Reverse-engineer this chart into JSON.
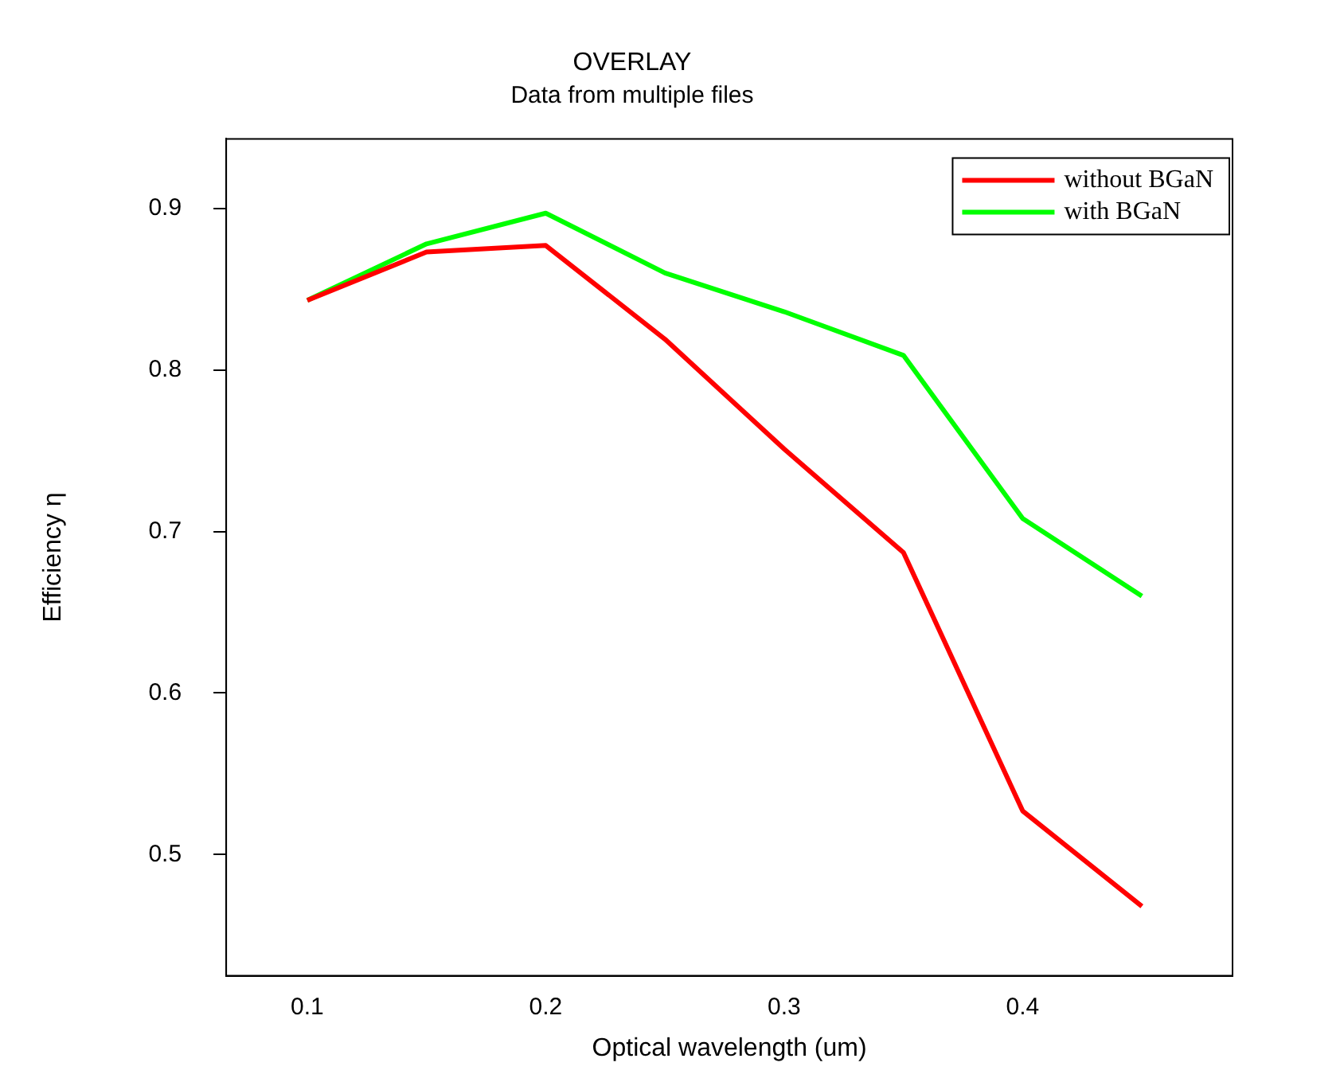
{
  "chart_data": {
    "type": "line",
    "title": "OVERLAY",
    "subtitle": "Data from multiple files",
    "xlabel": "Optical wavelength (um)",
    "ylabel": "Efficiency η",
    "x": [
      0.1,
      0.15,
      0.2,
      0.25,
      0.3,
      0.35,
      0.4,
      0.45
    ],
    "series": [
      {
        "name": "without BGaN",
        "color": "#ff0000",
        "values": [
          0.843,
          0.873,
          0.877,
          0.819,
          0.751,
          0.687,
          0.527,
          0.468
        ]
      },
      {
        "name": "with BGaN",
        "color": "#00ff00",
        "values": [
          0.843,
          0.878,
          0.897,
          0.86,
          0.836,
          0.809,
          0.708,
          0.66
        ]
      }
    ],
    "xlim": [
      0.066,
      0.488
    ],
    "xticks": [
      0.1,
      0.2,
      0.3,
      0.4
    ],
    "ylim": [
      0.425,
      0.943
    ],
    "yticks": [
      0.5,
      0.6,
      0.7,
      0.8,
      0.9
    ],
    "grid": false,
    "legend": "top right",
    "marker": "none",
    "line_style": "solid"
  }
}
